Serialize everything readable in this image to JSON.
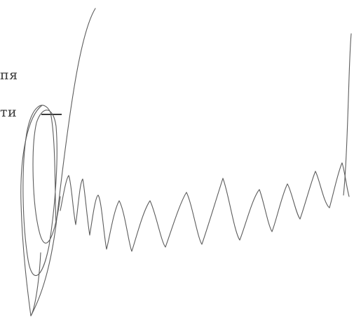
{
  "document": {
    "text_lines": [
      "пя",
      "ти"
    ],
    "signature": {
      "kind": "handwritten-signature",
      "ink_color": "#5d5d5d"
    },
    "text_color": "#3a3a3a",
    "background": "#ffffff"
  }
}
